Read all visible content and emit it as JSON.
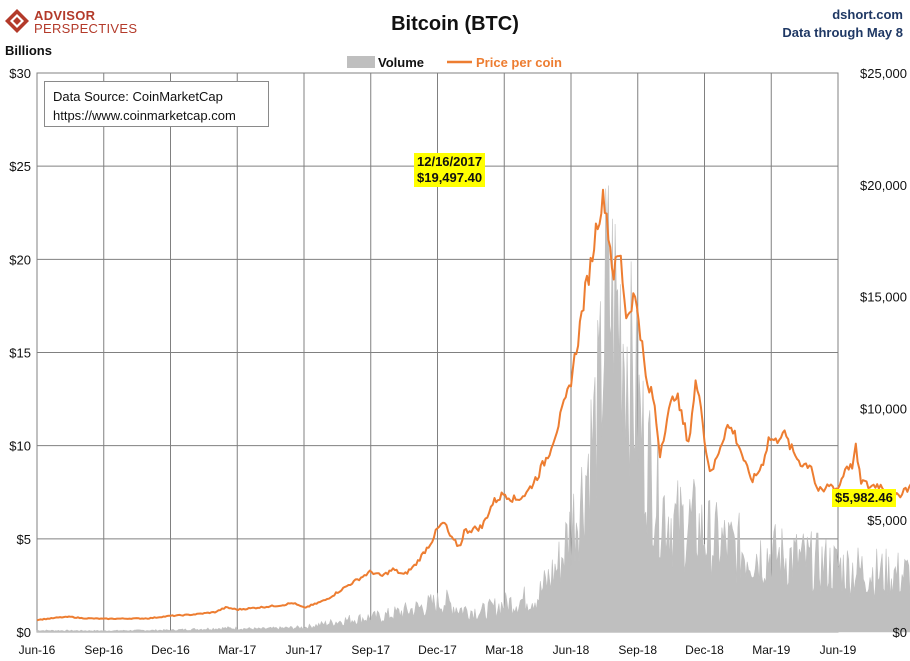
{
  "branding": {
    "logo_line1": "ADVISOR",
    "logo_line2": "PERSPECTIVES",
    "site": "dshort.com",
    "data_through": "Data through May 8"
  },
  "colors": {
    "volume": "#bfbfbf",
    "price": "#ed7d31",
    "highlight": "#ffff00",
    "grid": "#808080",
    "brand": "#b33a2a",
    "site_text": "#1f3864"
  },
  "source_box": {
    "line1": "Data Source: CoinMarketCap",
    "line2": "https://www.coinmarketcap.com"
  },
  "chart_data": {
    "type": "area",
    "title": "Bitcoin (BTC)",
    "left_axis_label": "Billions",
    "legend": {
      "volume": "Volume",
      "price": "Price per coin",
      "placement": "top-center"
    },
    "x_ticks": [
      "Jun-16",
      "Sep-16",
      "Dec-16",
      "Mar-17",
      "Jun-17",
      "Sep-17",
      "Dec-17",
      "Mar-18",
      "Jun-18",
      "Sep-18",
      "Dec-18",
      "Mar-19",
      "Jun-19"
    ],
    "y_left": {
      "min": 0,
      "max": 30,
      "ticks": [
        0,
        5,
        10,
        15,
        20,
        25,
        30
      ],
      "labels": [
        "$0",
        "$5",
        "$10",
        "$15",
        "$20",
        "$25",
        "$30"
      ]
    },
    "y_right": {
      "min": 0,
      "max": 25000,
      "ticks": [
        0,
        5000,
        10000,
        15000,
        20000,
        25000
      ],
      "labels": [
        "$0",
        "$5,000",
        "$10,000",
        "$15,000",
        "$20,000",
        "$25,000"
      ]
    },
    "grid": true,
    "series": [
      {
        "name": "Price per coin",
        "axis": "right",
        "unit": "USD",
        "points": [
          [
            0,
            540
          ],
          [
            1,
            650
          ],
          [
            1.5,
            680
          ],
          [
            2,
            620
          ],
          [
            3,
            590
          ],
          [
            4,
            600
          ],
          [
            5,
            610
          ],
          [
            6,
            720
          ],
          [
            7,
            780
          ],
          [
            8,
            890
          ],
          [
            8.5,
            1100
          ],
          [
            9,
            1000
          ],
          [
            10,
            1100
          ],
          [
            11,
            1200
          ],
          [
            11.5,
            1300
          ],
          [
            12,
            1080
          ],
          [
            12.5,
            1250
          ],
          [
            13,
            1450
          ],
          [
            14,
            2100
          ],
          [
            15,
            2700
          ],
          [
            15.5,
            2500
          ],
          [
            16,
            2800
          ],
          [
            16.5,
            2550
          ],
          [
            17,
            3000
          ],
          [
            17.7,
            4000
          ],
          [
            18,
            4600
          ],
          [
            18.3,
            4900
          ],
          [
            18.6,
            4200
          ],
          [
            19,
            3800
          ],
          [
            19.2,
            4500
          ],
          [
            20,
            4700
          ],
          [
            20.5,
            5800
          ],
          [
            21,
            6200
          ],
          [
            21.5,
            5900
          ],
          [
            22,
            6200
          ],
          [
            22.5,
            7000
          ],
          [
            23,
            8000
          ],
          [
            23.5,
            9500
          ],
          [
            23.9,
            10800
          ],
          [
            24,
            11300
          ],
          [
            24.3,
            13000
          ],
          [
            24.6,
            15000
          ],
          [
            24.9,
            16500
          ],
          [
            25.2,
            18500
          ],
          [
            25.5,
            19497
          ],
          [
            25.9,
            16000
          ],
          [
            26.2,
            17000
          ],
          [
            26.5,
            14000
          ],
          [
            26.8,
            15000
          ],
          [
            27,
            14500
          ],
          [
            27.4,
            11000
          ],
          [
            27.7,
            10500
          ],
          [
            28,
            8000
          ],
          [
            28.3,
            9500
          ],
          [
            28.7,
            10800
          ],
          [
            29,
            9500
          ],
          [
            29.3,
            8500
          ],
          [
            29.6,
            11000
          ],
          [
            29.8,
            10800
          ],
          [
            30,
            8500
          ],
          [
            30.3,
            7000
          ],
          [
            30.6,
            8000
          ],
          [
            31,
            9200
          ],
          [
            31.3,
            9000
          ],
          [
            31.6,
            8200
          ],
          [
            32,
            7000
          ],
          [
            32.2,
            6800
          ],
          [
            32.6,
            7500
          ],
          [
            32.9,
            8700
          ],
          [
            33.2,
            8500
          ],
          [
            33.5,
            9000
          ],
          [
            34,
            8000
          ],
          [
            34.4,
            7500
          ],
          [
            34.8,
            7500
          ],
          [
            35,
            6500
          ],
          [
            35.3,
            6200
          ],
          [
            35.6,
            6600
          ],
          [
            36,
            6400
          ],
          [
            36.4,
            7500
          ],
          [
            36.6,
            7300
          ],
          [
            36.8,
            8200
          ],
          [
            37,
            6800
          ],
          [
            37.4,
            6500
          ],
          [
            37.8,
            6600
          ],
          [
            38.3,
            6300
          ],
          [
            38.6,
            6000
          ],
          [
            39,
            6400
          ],
          [
            39.5,
            6600
          ],
          [
            40,
            6500
          ],
          [
            40.5,
            6400
          ],
          [
            41,
            6500
          ],
          [
            41.5,
            6400
          ],
          [
            41.8,
            5600
          ],
          [
            42,
            4500
          ],
          [
            42.3,
            4000
          ],
          [
            42.6,
            3800
          ],
          [
            43,
            3500
          ],
          [
            43.3,
            3700
          ],
          [
            43.7,
            3800
          ],
          [
            44,
            3600
          ],
          [
            44.5,
            3700
          ],
          [
            45,
            3500
          ],
          [
            45.5,
            3600
          ],
          [
            46,
            3800
          ],
          [
            46.5,
            3900
          ],
          [
            47,
            4000
          ],
          [
            47.5,
            4000
          ],
          [
            48,
            5200
          ],
          [
            48.5,
            5300
          ],
          [
            49,
            5400
          ],
          [
            49.6,
            5500
          ],
          [
            50.2,
            5700
          ],
          [
            50.6,
            5982.46
          ]
        ],
        "peak": {
          "date": "12/16/2017",
          "label": "$19,497.40",
          "value": 19497.4
        },
        "last": {
          "label": "$5,982.46",
          "value": 5982.46
        }
      },
      {
        "name": "Volume",
        "axis": "left",
        "unit": "USD billions",
        "points": [
          [
            0,
            0.1
          ],
          [
            3,
            0.08
          ],
          [
            6,
            0.12
          ],
          [
            8.5,
            0.25
          ],
          [
            10,
            0.2
          ],
          [
            12,
            0.3
          ],
          [
            14,
            0.8
          ],
          [
            15.5,
            1.0
          ],
          [
            17,
            1.5
          ],
          [
            18.3,
            2.0
          ],
          [
            19,
            1.5
          ],
          [
            20,
            1.3
          ],
          [
            21,
            1.8
          ],
          [
            22.5,
            2.3
          ],
          [
            23.5,
            4.5
          ],
          [
            24.5,
            9.0
          ],
          [
            25.3,
            15.0
          ],
          [
            25.6,
            22.0
          ],
          [
            26.3,
            20.0
          ],
          [
            26.8,
            16.0
          ],
          [
            27.3,
            12.0
          ],
          [
            28,
            8.5
          ],
          [
            28.7,
            7.0
          ],
          [
            29.5,
            7.0
          ],
          [
            30.3,
            6.0
          ],
          [
            31.2,
            5.5
          ],
          [
            32,
            5.2
          ],
          [
            33,
            5.0
          ],
          [
            34,
            4.8
          ],
          [
            35,
            4.5
          ],
          [
            36,
            4.2
          ],
          [
            37,
            4.0
          ],
          [
            38,
            3.8
          ],
          [
            39,
            3.7
          ],
          [
            40,
            3.6
          ],
          [
            41,
            3.5
          ],
          [
            42,
            4.8
          ],
          [
            42.6,
            6.0
          ],
          [
            43.5,
            5.2
          ],
          [
            44.5,
            5.0
          ],
          [
            45.5,
            6.0
          ],
          [
            46.2,
            8.0
          ],
          [
            47,
            9.5
          ],
          [
            47.7,
            12.0
          ],
          [
            48,
            18.0
          ],
          [
            48.4,
            22.9
          ],
          [
            48.8,
            16.0
          ],
          [
            49.3,
            15.0
          ],
          [
            49.8,
            18.0
          ],
          [
            50.3,
            17.0
          ],
          [
            50.6,
            12.0
          ]
        ]
      }
    ]
  }
}
